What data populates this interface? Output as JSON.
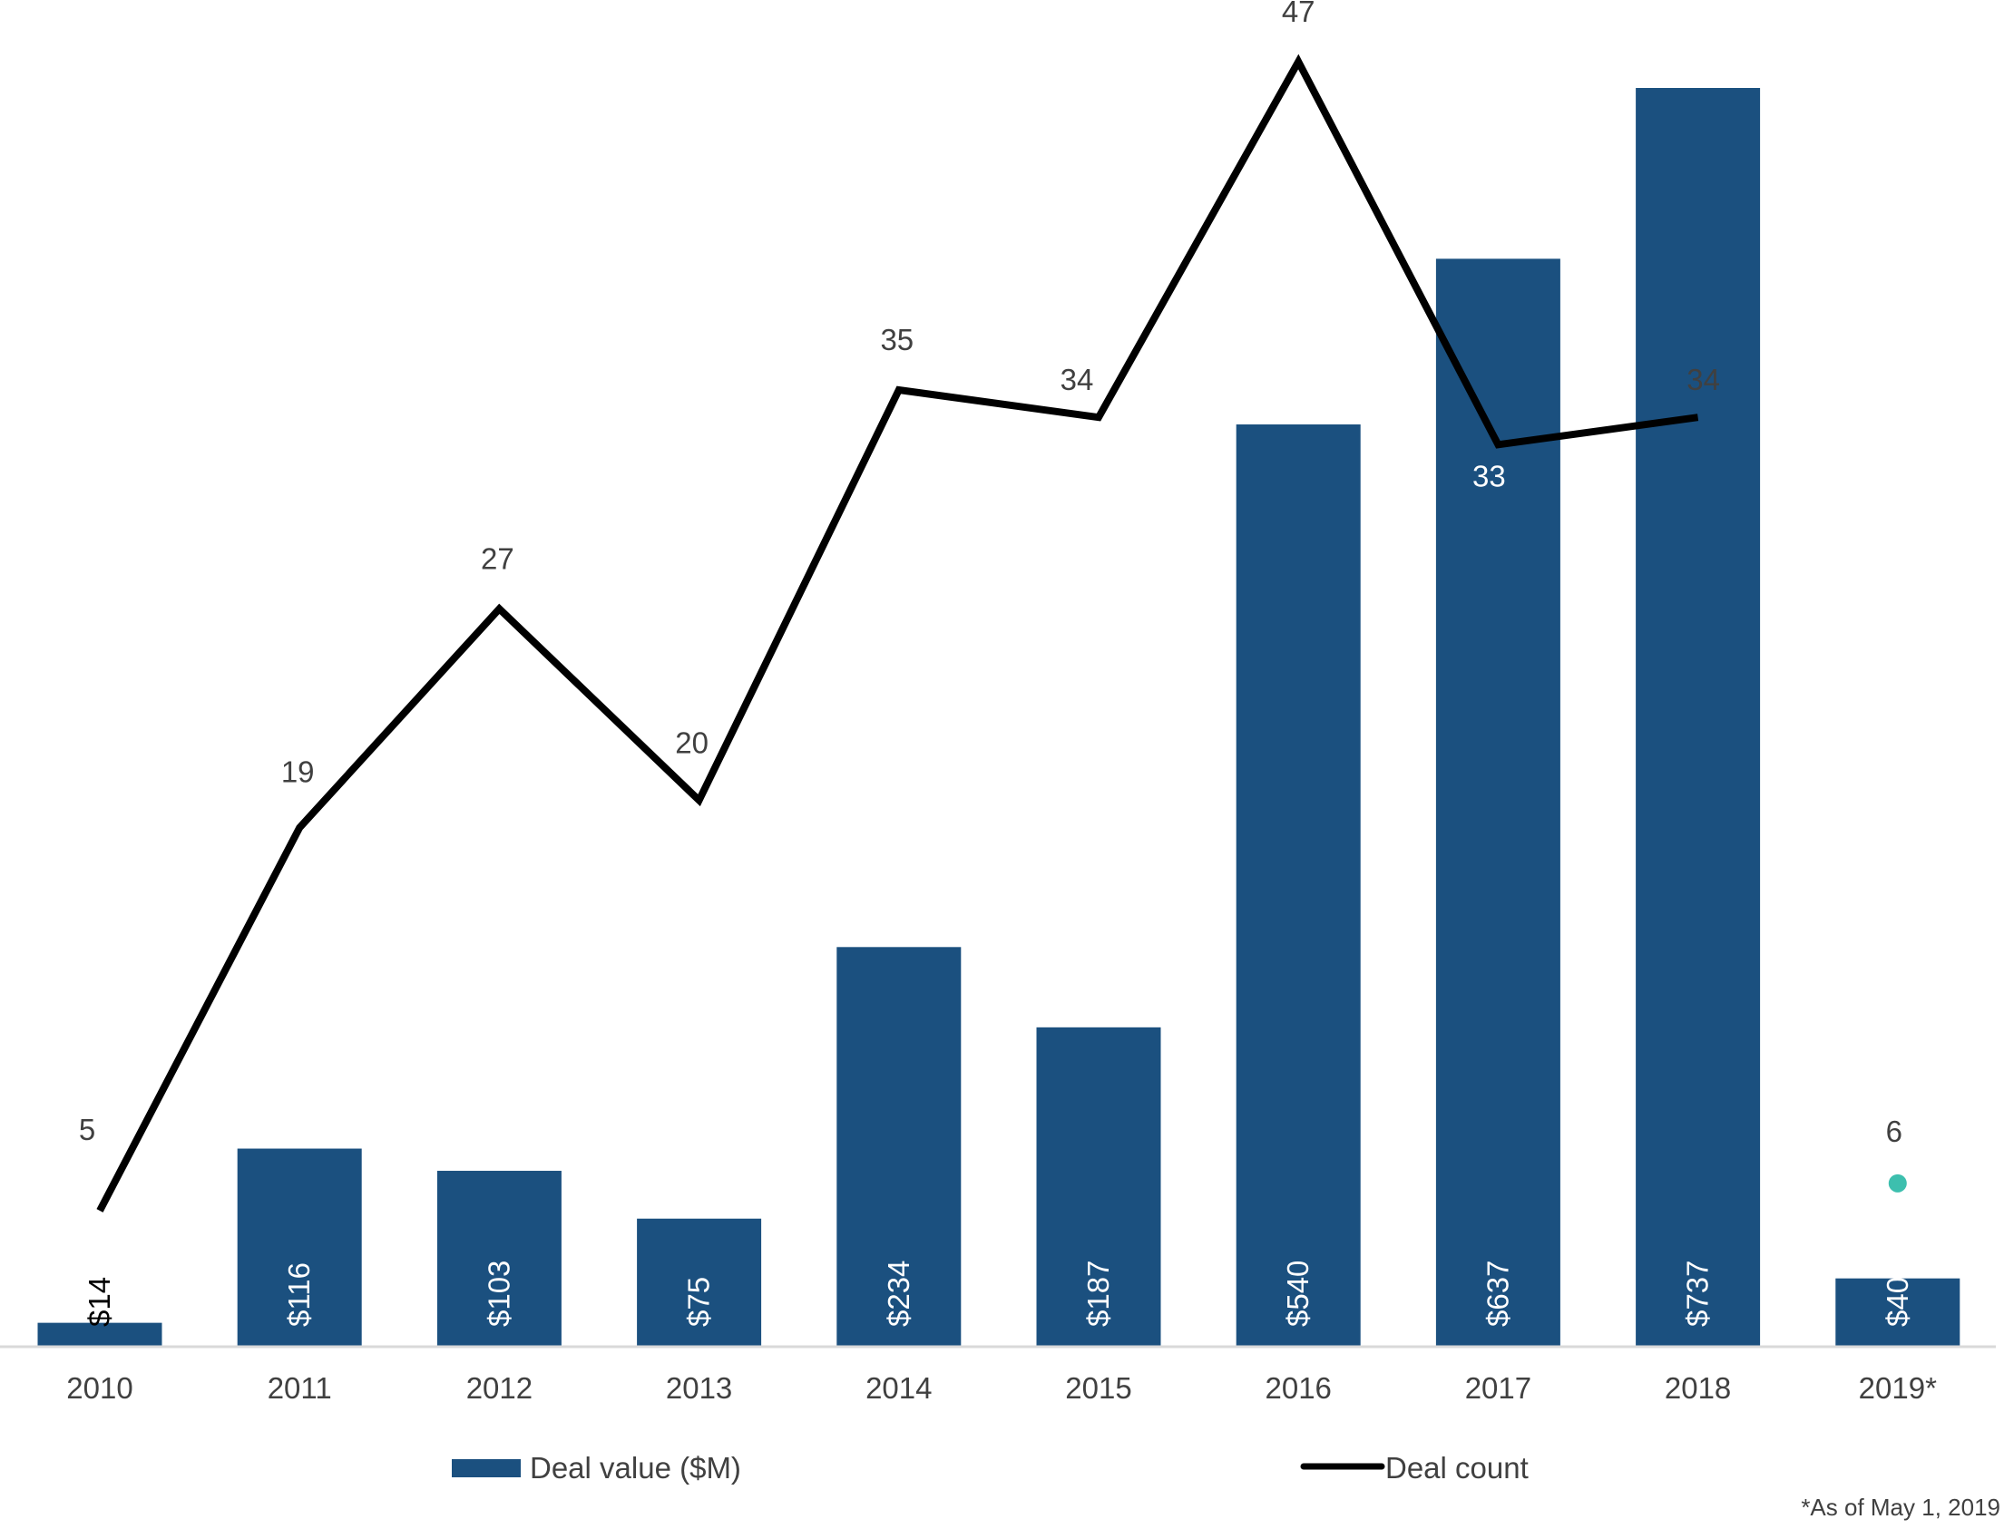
{
  "chart_data": {
    "type": "bar",
    "categories": [
      "2010",
      "2011",
      "2012",
      "2013",
      "2014",
      "2015",
      "2016",
      "2017",
      "2018",
      "2019*"
    ],
    "series": [
      {
        "name": "Deal value ($M)",
        "kind": "bar",
        "color": "#1b507f",
        "values": [
          14,
          116,
          103,
          75,
          234,
          187,
          540,
          637,
          737,
          40
        ],
        "labels": [
          "$14",
          "$116",
          "$103",
          "$75",
          "$234",
          "$187",
          "$540",
          "$637",
          "$737",
          "$40"
        ]
      },
      {
        "name": "Deal count",
        "kind": "line",
        "color": "#000000",
        "values": [
          5,
          19,
          27,
          20,
          35,
          34,
          47,
          33,
          34,
          6
        ],
        "labels": [
          "5",
          "19",
          "27",
          "20",
          "35",
          "34",
          "47",
          "33",
          "34",
          "6"
        ],
        "line_break_before_last": true,
        "last_point_marker_color": "#3dbfae"
      }
    ],
    "ylim_value": [
      0,
      750
    ],
    "ylim_count": [
      0,
      50
    ],
    "grid": false,
    "legend": "bottom",
    "footnote": "*As of May 1, 2019"
  }
}
